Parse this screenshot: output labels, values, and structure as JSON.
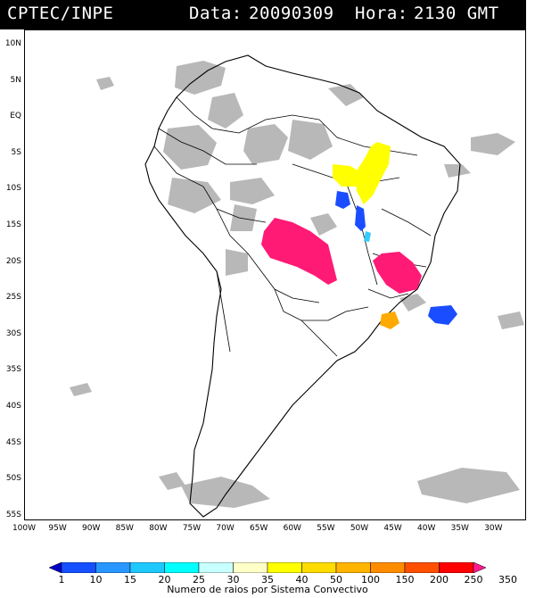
{
  "header": {
    "source": "CPTEC/INPE",
    "date_label": "Data:",
    "date_value": "20090309",
    "hour_label": "Hora:",
    "hour_value": "2130 GMT"
  },
  "map": {
    "lat_labels": [
      "10N",
      "5N",
      "EQ",
      "5S",
      "10S",
      "15S",
      "20S",
      "25S",
      "30S",
      "35S",
      "40S",
      "45S",
      "50S",
      "55S"
    ],
    "lon_labels": [
      "100W",
      "95W",
      "90W",
      "85W",
      "80W",
      "75W",
      "70W",
      "65W",
      "60W",
      "55W",
      "50W",
      "45W",
      "40W",
      "35W",
      "30W"
    ],
    "colors": {
      "land_border": "#000000",
      "cloud_gray": "#b4b4b4"
    },
    "convective_systems": [
      {
        "color": "#ff1a75",
        "region": "western"
      },
      {
        "color": "#ff1a75",
        "region": "southeastern"
      },
      {
        "color": "#ffff00",
        "region": "northern"
      },
      {
        "color": "#ffff00",
        "region": "northern-strip"
      },
      {
        "color": "#1a4dff",
        "region": "central-west"
      },
      {
        "color": "#1a4dff",
        "region": "central"
      },
      {
        "color": "#33ccff",
        "region": "central-small"
      },
      {
        "color": "#ffaa00",
        "region": "south-atlantic"
      },
      {
        "color": "#1a4dff",
        "region": "atlantic"
      }
    ]
  },
  "colorbar": {
    "labels": [
      "1",
      "10",
      "15",
      "20",
      "25",
      "30",
      "35",
      "40",
      "50",
      "100",
      "150",
      "200",
      "250",
      "350"
    ],
    "colors": [
      "#0000c8",
      "#1450ff",
      "#2896ff",
      "#1ec8ff",
      "#00ffff",
      "#c8ffff",
      "#ffffc8",
      "#ffff00",
      "#ffdc00",
      "#ffb400",
      "#ff8c00",
      "#ff5000",
      "#ff0000",
      "#ff1a8c"
    ],
    "caption": "Numero de raios por Sistema Convectivo"
  }
}
